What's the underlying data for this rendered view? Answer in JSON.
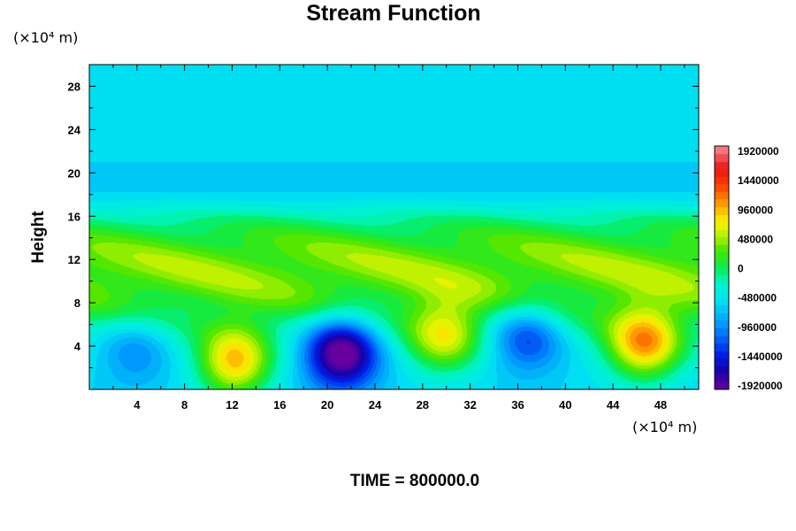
{
  "chart_data": {
    "type": "heatmap",
    "title": "Stream Function",
    "ylabel": "Height",
    "y_unit_label": "(×10⁴ m)",
    "x_unit_label": "(×10⁴ m)",
    "footer": "TIME = 800000.0",
    "xlim": [
      0,
      51.2
    ],
    "ylim": [
      0,
      30
    ],
    "x_ticks": [
      "4",
      "8",
      "12",
      "16",
      "20",
      "24",
      "28",
      "32",
      "36",
      "40",
      "44",
      "48"
    ],
    "y_ticks": [
      "4",
      "8",
      "12",
      "16",
      "20",
      "24",
      "28"
    ],
    "colorbar": {
      "min": -1920000,
      "max": 1920000,
      "labels": [
        "1920000",
        "1440000",
        "960000",
        "480000",
        "0",
        "-480000",
        "-960000",
        "-1440000",
        "-1920000"
      ]
    },
    "background_value": -600000,
    "features": [
      {
        "kind": "layer",
        "y_center": 18.5,
        "y_halfwidth": 2.2,
        "value": -870000
      },
      {
        "kind": "layer",
        "y_center": 11,
        "y_halfwidth": 6,
        "value": 560000
      },
      {
        "kind": "blob",
        "x": 12.2,
        "y": 2.5,
        "value": 1350000
      },
      {
        "kind": "blob",
        "x": 21.2,
        "y": 3.5,
        "value": -1650000
      },
      {
        "kind": "blob",
        "x": 29.8,
        "y": 4.8,
        "value": 980000
      },
      {
        "kind": "blob",
        "x": 36.8,
        "y": 5.0,
        "value": -880000
      },
      {
        "kind": "blob",
        "x": 46.6,
        "y": 4.2,
        "value": 1400000
      },
      {
        "kind": "blob",
        "x": 3.8,
        "y": 3.8,
        "value": -500000
      }
    ]
  }
}
